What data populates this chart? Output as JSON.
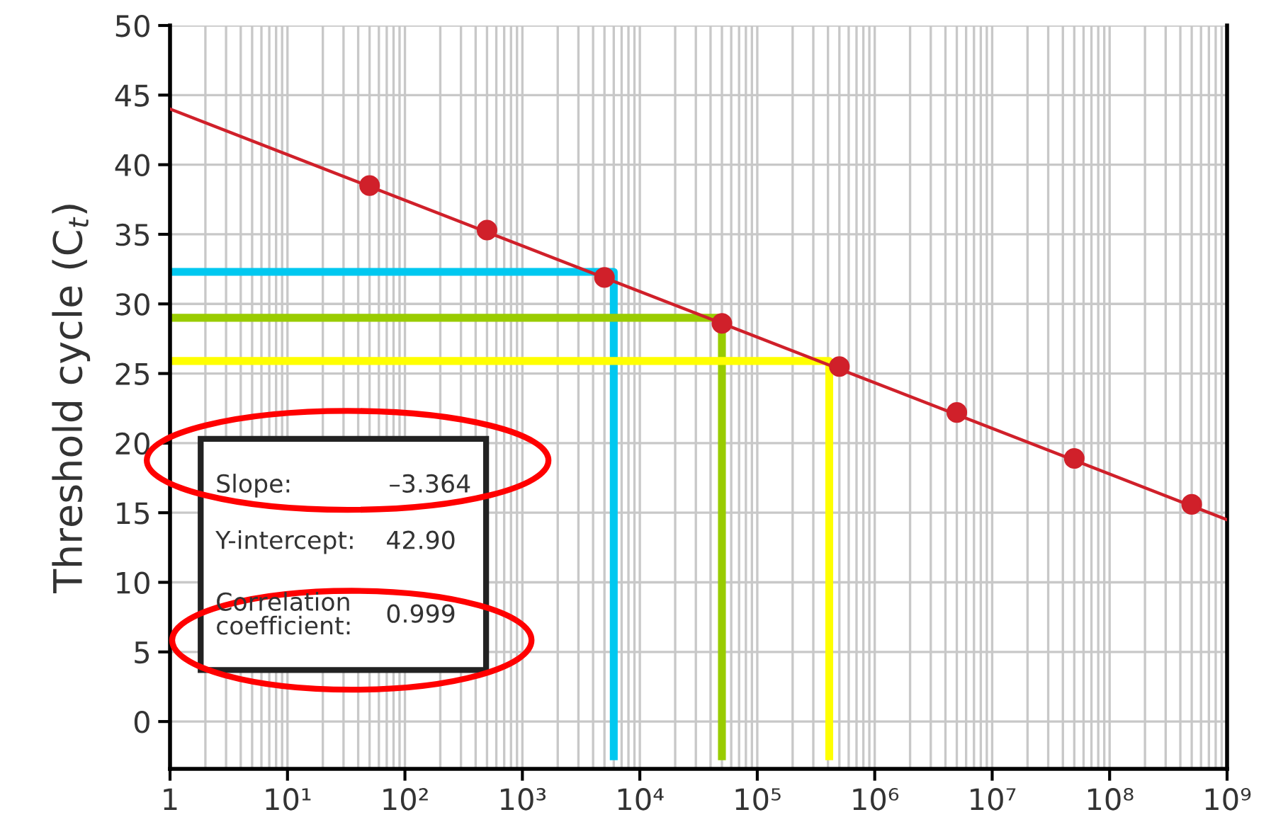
{
  "chart_data": {
    "type": "scatter",
    "ylabel": "Threshold cycle (C$_{t}$)",
    "log": "x",
    "grid": true,
    "legend": false,
    "xlim": [
      1,
      1000000000
    ],
    "ylim": [
      -3.4,
      50
    ],
    "xticks": [
      {
        "value": 1,
        "label": "1"
      },
      {
        "value": 10,
        "label": "10¹"
      },
      {
        "value": 100,
        "label": "10²"
      },
      {
        "value": 1000,
        "label": "10³"
      },
      {
        "value": 10000,
        "label": "10⁴"
      },
      {
        "value": 100000,
        "label": "10⁵"
      },
      {
        "value": 1000000,
        "label": "10⁶"
      },
      {
        "value": 10000000,
        "label": "10⁷"
      },
      {
        "value": 100000000,
        "label": "10⁸"
      },
      {
        "value": 1000000000,
        "label": "10⁹"
      }
    ],
    "yticks": [
      0,
      5,
      10,
      15,
      20,
      25,
      30,
      35,
      40,
      45,
      50
    ],
    "series": [
      {
        "type": "line",
        "color": "#d0202a",
        "line_style": "solid",
        "marker": "none",
        "x": [
          1,
          1000000000
        ],
        "values": [
          44.0,
          14.5
        ]
      },
      {
        "color": "#d0202a",
        "marker": "circle",
        "x": [
          50,
          500,
          5000,
          50000,
          500000,
          5000000,
          50000000,
          500000000
        ],
        "values": [
          38.5,
          35.3,
          31.9,
          28.6,
          25.5,
          22.2,
          18.9,
          15.6
        ]
      },
      {
        "type": "line",
        "color": "#00c8f0",
        "line_style": "solid",
        "marker": "none",
        "x": [
          1,
          6000,
          6000
        ],
        "values": [
          32.3,
          32.3,
          -2.5
        ]
      },
      {
        "type": "line",
        "color": "#99cc00",
        "line_style": "solid",
        "marker": "none",
        "x": [
          1,
          50000,
          50000
        ],
        "values": [
          29.0,
          29.0,
          -2.5
        ]
      },
      {
        "type": "line",
        "color": "#ffff00",
        "line_style": "solid",
        "marker": "none",
        "x": [
          1,
          410000,
          410000
        ],
        "values": [
          25.9,
          25.9,
          -2.5
        ]
      }
    ],
    "annotations": [
      "Slope:",
      "–3.364",
      "Y-intercept:",
      "42.90",
      "Correlation\ncoefficient:",
      "0.999"
    ]
  }
}
